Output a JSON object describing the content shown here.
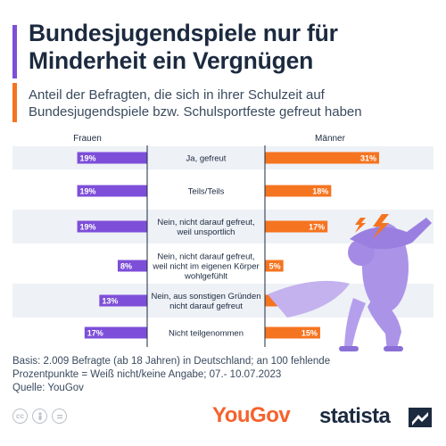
{
  "title": "Bundesjugendspiele nur für Minderheit ein Vergnügen",
  "subtitle": "Anteil der Befragten, die sich in ihrer Schulzeit auf Bundesjugendspiele bzw. Schulsportfeste gefreut haben",
  "colors": {
    "frauen": "#7d4fd9",
    "maenner": "#f5741f",
    "title_bar": "#7d4fd9",
    "subtitle_bar": "#f5741f",
    "row_stripe": "#eef1f6",
    "text_dark": "#1c2a3f"
  },
  "chart_data": {
    "type": "bar",
    "orientation": "horizontal-butterfly",
    "left_header": "Frauen",
    "right_header": "Männer",
    "categories": [
      "Ja, gefreut",
      "Teils/Teils",
      "Nein, nicht darauf gefreut, weil unsportlich",
      "Nein, nicht darauf gefreut, weil nicht im eigenen Körper wohlgefühlt",
      "Nein, aus sonstigen Gründen nicht darauf gefreut",
      "Nicht teilgenommen"
    ],
    "category_lines": [
      [
        "Ja, gefreut"
      ],
      [
        "Teils/Teils"
      ],
      [
        "Nein, nicht darauf gefreut,",
        "weil unsportlich"
      ],
      [
        "Nein, nicht darauf gefreut,",
        "weil nicht im eigenen Körper",
        "wohlgefühlt"
      ],
      [
        "Nein, aus sonstigen Gründen",
        "nicht darauf gefreut"
      ],
      [
        "Nicht teilgenommen"
      ]
    ],
    "series": [
      {
        "name": "Frauen",
        "values": [
          19,
          19,
          19,
          8,
          13,
          17
        ],
        "labels": [
          "19%",
          "19%",
          "19%",
          "8%",
          "13%",
          "17%"
        ]
      },
      {
        "name": "Männer",
        "values": [
          31,
          18,
          17,
          5,
          9,
          15
        ],
        "labels": [
          "31%",
          "18%",
          "17%",
          "5%",
          "9%",
          "15%"
        ]
      }
    ],
    "unit": "%",
    "xlim": [
      0,
      31
    ]
  },
  "footer": {
    "lines": [
      "Basis: 2.009 Befragte (ab 18 Jahren) in Deutschland; an 100 fehlende",
      "Prozentpunkte = Weiß nicht/keine Angabe; 07.- 10.07.2023",
      "Quelle: YouGov"
    ]
  },
  "icons": [
    "cc-icon",
    "person-icon",
    "equals-icon",
    "lightning-bolt-icon",
    "distressed-person-illustration",
    "statista-logo-icon"
  ],
  "logos": {
    "yougov": "YouGov",
    "statista": "statista"
  }
}
